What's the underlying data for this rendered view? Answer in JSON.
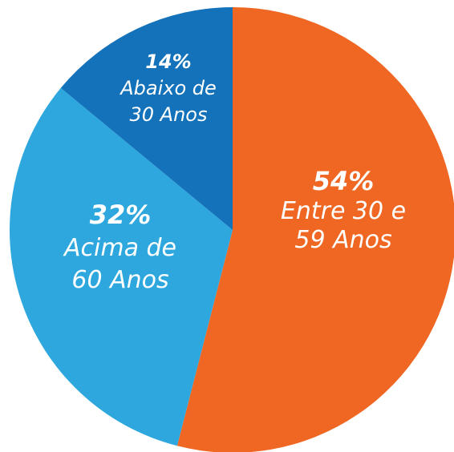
{
  "chart_data": {
    "type": "pie",
    "categories": [
      "Entre 30 e 59 Anos",
      "Acima de 60 Anos",
      "Abaixo de 30 Anos"
    ],
    "values": [
      54,
      32,
      14
    ],
    "value_labels": [
      "54%",
      "32%",
      "14%"
    ],
    "colors": [
      "#ef6722",
      "#2ea7de",
      "#1372b9"
    ]
  }
}
